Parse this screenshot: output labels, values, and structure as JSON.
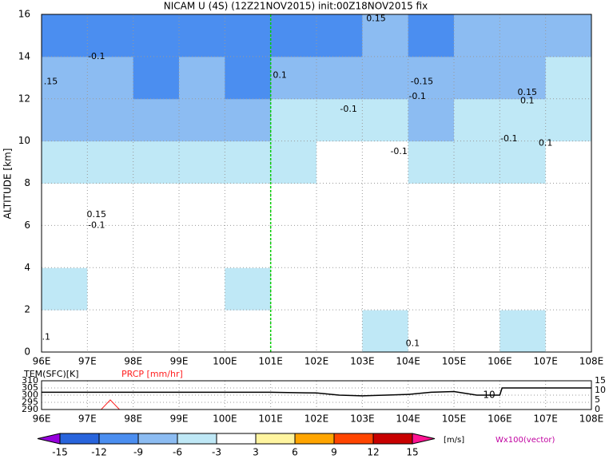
{
  "chart_data": [
    {
      "type": "contour",
      "title": "NICAM U (4S) (12Z21NOV2015) init:00Z18NOV2015 fix",
      "y_label": "ALTITUDE [km]",
      "xlim": [
        96,
        108
      ],
      "ylim": [
        0,
        16
      ],
      "xticks": [
        {
          "value": 96,
          "label": "96E"
        },
        {
          "value": 97,
          "label": "97E"
        },
        {
          "value": 98,
          "label": "98E"
        },
        {
          "value": 99,
          "label": "99E"
        },
        {
          "value": 100,
          "label": "100E"
        },
        {
          "value": 101,
          "label": "101E"
        },
        {
          "value": 102,
          "label": "102E"
        },
        {
          "value": 103,
          "label": "103E"
        },
        {
          "value": 104,
          "label": "104E"
        },
        {
          "value": 105,
          "label": "105E"
        },
        {
          "value": 106,
          "label": "106E"
        },
        {
          "value": 107,
          "label": "107E"
        },
        {
          "value": 108,
          "label": "108E"
        }
      ],
      "yticks": [
        0,
        2,
        4,
        6,
        8,
        10,
        12,
        14,
        16
      ],
      "grid": true,
      "marker_x": 101,
      "marker_color": "#00cc00",
      "field": {
        "x": [
          96.5,
          97.5,
          98.5,
          99.5,
          100.5,
          101.5,
          102.5,
          103.5,
          104.5,
          105.5,
          106.5,
          107.5
        ],
        "y": [
          1,
          3,
          5,
          7,
          9,
          11,
          13,
          15
        ],
        "values": [
          [
            -3,
            -1,
            -2,
            -1,
            0,
            0,
            0,
            -4,
            -2,
            -1,
            -4,
            -2
          ],
          [
            -4,
            -1,
            -3,
            -1,
            -4,
            -2,
            -1,
            -3,
            -1,
            -2,
            -1,
            -2
          ],
          [
            -3,
            -1,
            -2,
            -1,
            -1,
            -1,
            -2,
            -1,
            0,
            -2,
            -1,
            -1
          ],
          [
            -2,
            -1,
            0,
            -1,
            -1,
            -1,
            0,
            -1,
            -1,
            -1,
            -2,
            -1
          ],
          [
            -5,
            -4,
            -4,
            -5,
            -4,
            -4,
            -3,
            -2,
            -4,
            -4,
            -4,
            -3
          ],
          [
            -8,
            -7,
            -8,
            -7,
            -7,
            -6,
            -5,
            -5,
            -7,
            -6,
            -5,
            -4
          ],
          [
            -9,
            -9,
            -10,
            -9,
            -10,
            -9,
            -8,
            -7,
            -8,
            -7,
            -7,
            -6
          ],
          [
            -10,
            -11,
            -10,
            -11,
            -10,
            -12,
            -11,
            -9,
            -10,
            -9,
            -8,
            -9
          ]
        ]
      },
      "annotations": [
        {
          "x": 103.3,
          "y": 15.8,
          "text": "0.15"
        },
        {
          "x": 97.2,
          "y": 14.0,
          "text": "-0.1"
        },
        {
          "x": 96.2,
          "y": 12.8,
          "text": ".15"
        },
        {
          "x": 101.2,
          "y": 13.1,
          "text": "0.1"
        },
        {
          "x": 104.3,
          "y": 12.8,
          "text": "-0.15"
        },
        {
          "x": 104.2,
          "y": 12.1,
          "text": "-0.1"
        },
        {
          "x": 102.7,
          "y": 11.5,
          "text": "-0.1"
        },
        {
          "x": 106.6,
          "y": 12.3,
          "text": "0.15"
        },
        {
          "x": 106.6,
          "y": 11.9,
          "text": "0.1"
        },
        {
          "x": 106.2,
          "y": 10.1,
          "text": "-0.1"
        },
        {
          "x": 107.0,
          "y": 9.9,
          "text": "0.1"
        },
        {
          "x": 103.8,
          "y": 9.5,
          "text": "-0.1"
        },
        {
          "x": 97.2,
          "y": 6.5,
          "text": "0.15"
        },
        {
          "x": 97.2,
          "y": 6.0,
          "text": "-0.1"
        },
        {
          "x": 96.1,
          "y": 0.7,
          "text": ".1"
        },
        {
          "x": 104.1,
          "y": 0.4,
          "text": "0.1"
        }
      ]
    },
    {
      "type": "line",
      "xlim": [
        96,
        108
      ],
      "ylim": [
        290,
        310
      ],
      "yticks": [
        290,
        295,
        300,
        305,
        310
      ],
      "y2lim": [
        0,
        15
      ],
      "y2ticks": [
        0,
        5,
        10,
        15
      ],
      "xticks": [
        {
          "value": 96,
          "label": "96E"
        },
        {
          "value": 97,
          "label": "97E"
        },
        {
          "value": 98,
          "label": "98E"
        },
        {
          "value": 99,
          "label": "99E"
        },
        {
          "value": 100,
          "label": "100E"
        },
        {
          "value": 101,
          "label": "101E"
        },
        {
          "value": 102,
          "label": "102E"
        },
        {
          "value": 103,
          "label": "103E"
        },
        {
          "value": 104,
          "label": "104E"
        },
        {
          "value": 105,
          "label": "105E"
        },
        {
          "value": 106,
          "label": "106E"
        },
        {
          "value": 107,
          "label": "107E"
        },
        {
          "value": 108,
          "label": "108E"
        }
      ],
      "x": [
        96,
        97,
        97.3,
        97.5,
        97.7,
        98,
        99,
        100,
        101,
        102,
        102.5,
        103,
        103.5,
        104,
        104.5,
        105,
        105.5,
        106,
        106.05,
        107,
        108
      ],
      "series": [
        {
          "name": "TEM(SFC)[K]",
          "color": "#000000",
          "values": [
            302,
            302,
            302,
            302,
            302,
            302,
            302,
            302,
            302,
            301.5,
            300,
            299.5,
            300,
            300.5,
            302,
            302.5,
            300,
            300,
            305,
            305,
            305
          ]
        },
        {
          "name": "PRCP [mm/hr]",
          "color": "#ff2020",
          "axis": "y2",
          "values": [
            0,
            0,
            0,
            5,
            0,
            0,
            0,
            0,
            0,
            0,
            0,
            0,
            0,
            0,
            0,
            0,
            0,
            0,
            0,
            0,
            0
          ]
        }
      ],
      "annotations": [
        {
          "x": 105.9,
          "y": 300,
          "text": "10"
        }
      ]
    },
    {
      "type": "colorbar",
      "levels": [
        -15,
        -12,
        -9,
        -6,
        -3,
        3,
        6,
        9,
        12,
        15
      ],
      "colors": [
        "#9600dc",
        "#2864dc",
        "#4b8ef0",
        "#8cbcf2",
        "#bfe8f6",
        "#ffffff",
        "#fff5a0",
        "#ffa500",
        "#ff4500",
        "#c80000",
        "#ff1493"
      ],
      "unit": "[m/s]",
      "note": "Wx100(vector)"
    }
  ]
}
